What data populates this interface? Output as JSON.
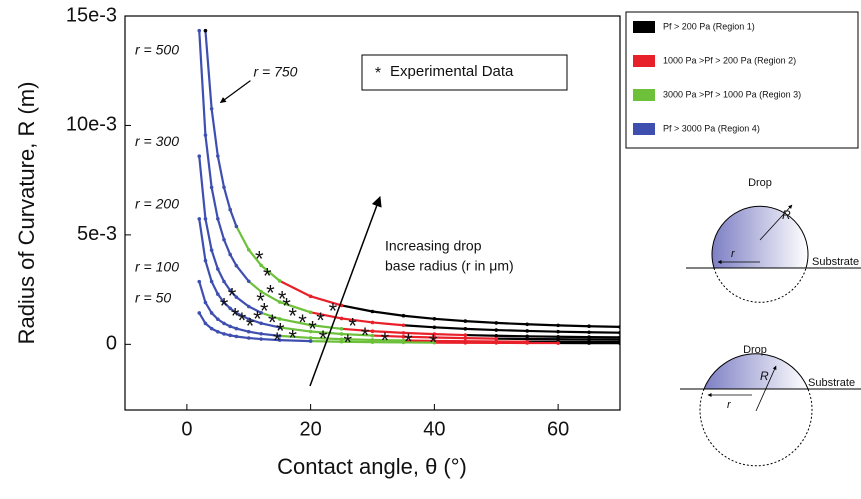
{
  "chart_data": {
    "type": "line",
    "ylabel": "Radius of Curvature, R (m)",
    "xlabel": "Contact angle, θ (°)",
    "xlim": [
      -10,
      70
    ],
    "ylim": [
      -0.003,
      0.015
    ],
    "xticks": [
      0,
      20,
      40,
      60
    ],
    "yticks": [
      0,
      {
        "value": 0.005,
        "label": "5e-3"
      },
      {
        "value": 0.01,
        "label": "10e-3"
      },
      {
        "value": 0.015,
        "label": "15e-3"
      }
    ],
    "regions": [
      {
        "label": "Pf > 200 Pa (Region 1)",
        "color": "#000000"
      },
      {
        "label": "1000 Pa >Pf > 200 Pa (Region 2)",
        "color": "#e8202a"
      },
      {
        "label": "3000 Pa >Pf > 1000 Pa (Region 3)",
        "color": "#6cc03a"
      },
      {
        "label": "Pf > 3000 Pa (Region 4)",
        "color": "#3f4fb0"
      }
    ],
    "curves": [
      {
        "name": "r = 750",
        "x": [
          3,
          4,
          5,
          6,
          7,
          8,
          10,
          12,
          15,
          20,
          25,
          30,
          35,
          40,
          45,
          50,
          55,
          60,
          65,
          70
        ],
        "values": [
          0.01433,
          0.01076,
          0.008603,
          0.007175,
          0.006155,
          0.005389,
          0.004319,
          0.003608,
          0.002898,
          0.002193,
          0.001775,
          0.0015,
          0.001307,
          0.001167,
          0.001061,
          0.000979,
          0.000916,
          0.000866,
          0.000827,
          0.000798
        ],
        "region": [
          1,
          4,
          4,
          4,
          4,
          4,
          3,
          3,
          3,
          2,
          2,
          1,
          1,
          1,
          1,
          1,
          1,
          1,
          1,
          1
        ]
      },
      {
        "name": "r = 500",
        "x": [
          2,
          3,
          4,
          5,
          6,
          7,
          8,
          10,
          12,
          15,
          20,
          25,
          30,
          35,
          40,
          45,
          50,
          55,
          60,
          65,
          70
        ],
        "values": [
          0.01433,
          0.009555,
          0.00717,
          0.005735,
          0.004784,
          0.004103,
          0.003593,
          0.00288,
          0.002405,
          0.001932,
          0.001462,
          0.001183,
          0.001,
          0.000872,
          0.000778,
          0.000707,
          0.000653,
          0.000611,
          0.000578,
          0.000552,
          0.000532
        ],
        "region": [
          4,
          4,
          4,
          4,
          4,
          4,
          4,
          4,
          3,
          3,
          3,
          2,
          2,
          2,
          1,
          1,
          1,
          1,
          1,
          1,
          1
        ]
      },
      {
        "name": "r = 300",
        "x": [
          2,
          3,
          4,
          5,
          6,
          7,
          8,
          10,
          12,
          15,
          20,
          25,
          30,
          35,
          40,
          45,
          50,
          55,
          60,
          65,
          70
        ],
        "values": [
          0.008595,
          0.005733,
          0.004302,
          0.003441,
          0.00287,
          0.002462,
          0.002156,
          0.001728,
          0.001443,
          0.001159,
          0.000877,
          0.00071,
          0.0006,
          0.000523,
          0.000467,
          0.000424,
          0.000392,
          0.000366,
          0.000347,
          0.000331,
          0.000319
        ],
        "region": [
          4,
          4,
          4,
          4,
          4,
          4,
          4,
          4,
          4,
          3,
          3,
          3,
          2,
          2,
          2,
          2,
          1,
          1,
          1,
          1,
          1
        ]
      },
      {
        "name": "r = 200",
        "x": [
          2,
          3,
          4,
          5,
          6,
          7,
          8,
          10,
          12,
          15,
          20,
          25,
          30,
          35,
          40,
          45,
          50,
          55,
          60,
          65,
          70
        ],
        "values": [
          0.00573,
          0.003822,
          0.002868,
          0.002294,
          0.001913,
          0.001641,
          0.001437,
          0.001152,
          0.000962,
          0.000773,
          0.000585,
          0.000473,
          0.0004,
          0.000349,
          0.000311,
          0.000283,
          0.000261,
          0.000244,
          0.000231,
          0.000221,
          0.000213
        ],
        "region": [
          4,
          4,
          4,
          4,
          4,
          4,
          4,
          4,
          4,
          4,
          3,
          3,
          3,
          2,
          2,
          2,
          2,
          1,
          1,
          1,
          1
        ]
      },
      {
        "name": "r = 100",
        "x": [
          2,
          3,
          4,
          5,
          6,
          7,
          8,
          10,
          12,
          15,
          20,
          25,
          30,
          35,
          40,
          45,
          50,
          55,
          60,
          65,
          70
        ],
        "values": [
          0.002865,
          0.001911,
          0.001434,
          0.001147,
          0.000957,
          0.000821,
          0.000719,
          0.000576,
          0.000481,
          0.000386,
          0.000292,
          0.000237,
          0.0002,
          0.000174,
          0.000156,
          0.000141,
          0.000131,
          0.000122,
          0.000116,
          0.00011,
          0.000106
        ],
        "region": [
          4,
          4,
          4,
          4,
          4,
          4,
          4,
          4,
          4,
          4,
          3,
          3,
          3,
          3,
          2,
          2,
          2,
          2,
          1,
          1,
          1
        ]
      },
      {
        "name": "r = 50",
        "x": [
          2,
          3,
          4,
          5,
          6,
          7,
          8,
          10,
          12,
          15,
          20,
          25,
          30,
          35,
          40,
          45,
          50,
          55,
          60,
          65,
          70
        ],
        "values": [
          0.001433,
          0.000956,
          0.000717,
          0.000574,
          0.000478,
          0.00041,
          0.000359,
          0.000288,
          0.000241,
          0.000193,
          0.000146,
          0.000118,
          0.0001,
          8.7e-05,
          7.8e-05,
          7.1e-05,
          6.5e-05,
          6.1e-05,
          5.8e-05,
          5.5e-05,
          5.3e-05
        ],
        "region": [
          4,
          4,
          4,
          4,
          4,
          4,
          4,
          4,
          4,
          4,
          4,
          3,
          3,
          3,
          3,
          2,
          2,
          2,
          2,
          1,
          1
        ]
      }
    ],
    "experimental": {
      "name": "Experimental Data",
      "x": [
        11.7,
        13,
        7.3,
        6,
        7.8,
        8.9,
        10.2,
        11.4,
        12.5,
        13.8,
        15.4,
        16.1,
        15.1,
        17.1,
        18.7,
        20.3,
        21.6,
        23.6,
        26.8,
        28.8,
        32,
        35.8,
        39.8,
        14.6,
        17.1,
        22,
        26,
        11.9,
        13.5
      ],
      "values": [
        0.00405,
        0.00327,
        0.00236,
        0.00191,
        0.00145,
        0.00123,
        0.001,
        0.00132,
        0.00168,
        0.00114,
        0.00223,
        0.00191,
        0.00077,
        0.00145,
        0.00114,
        0.00086,
        0.00123,
        0.00168,
        0.001,
        0.00055,
        0.00032,
        0.00027,
        0.00023,
        0.00032,
        0.00045,
        0.00041,
        0.00023,
        0.00214,
        0.0025
      ]
    },
    "annotation": [
      "Increasing drop",
      "base radius (r in μm)"
    ]
  },
  "diagrams": [
    {
      "title": "Drop",
      "R": "R",
      "r": "r",
      "substrate": "Substrate"
    },
    {
      "title": "Drop",
      "R": "R",
      "r": "r",
      "substrate": "Substrate"
    }
  ]
}
